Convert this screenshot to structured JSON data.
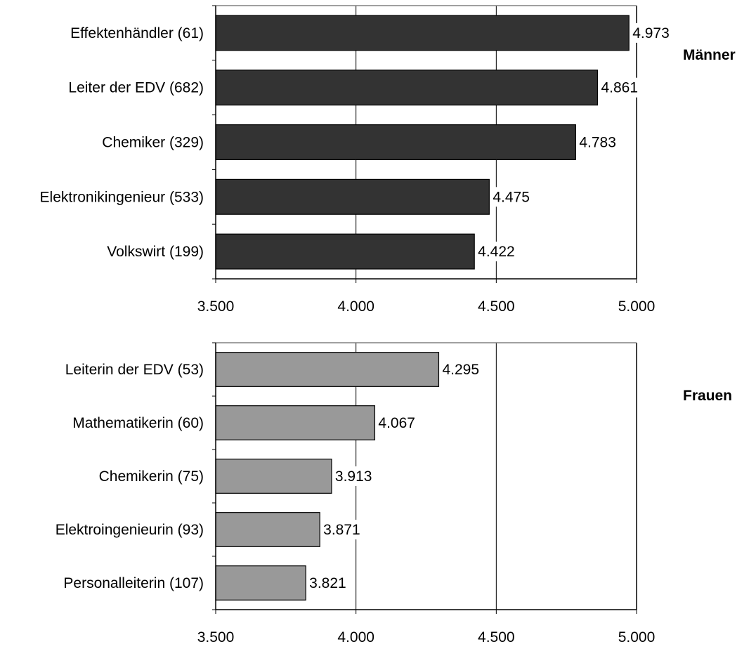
{
  "chart_data": [
    {
      "type": "bar",
      "orientation": "horizontal",
      "title": "Männer",
      "categories": [
        "Effektenhändler (61)",
        "Leiter der EDV (682)",
        "Chemiker (329)",
        "Elektronikingenieur (533)",
        "Volkswirt (199)"
      ],
      "values": [
        4973,
        4861,
        4783,
        4475,
        4422
      ],
      "value_labels": [
        "4.973",
        "4.861",
        "4.783",
        "4.475",
        "4.422"
      ],
      "xlim": [
        3500,
        5000
      ],
      "x_ticks": [
        3500,
        4000,
        4500,
        5000
      ],
      "x_tick_labels": [
        "3.500",
        "4.000",
        "4.500",
        "5.000"
      ],
      "bar_color": "#333333",
      "grid": true
    },
    {
      "type": "bar",
      "orientation": "horizontal",
      "title": "Frauen",
      "categories": [
        "Leiterin der EDV (53)",
        "Mathematikerin (60)",
        "Chemikerin (75)",
        "Elektroingenieurin (93)",
        "Personalleiterin (107)"
      ],
      "values": [
        4295,
        4067,
        3913,
        3871,
        3821
      ],
      "value_labels": [
        "4.295",
        "4.067",
        "3.913",
        "3.871",
        "3.821"
      ],
      "xlim": [
        3500,
        5000
      ],
      "x_ticks": [
        3500,
        4000,
        4500,
        5000
      ],
      "x_tick_labels": [
        "3.500",
        "4.000",
        "4.500",
        "5.000"
      ],
      "bar_color": "#999999",
      "grid": true
    }
  ]
}
